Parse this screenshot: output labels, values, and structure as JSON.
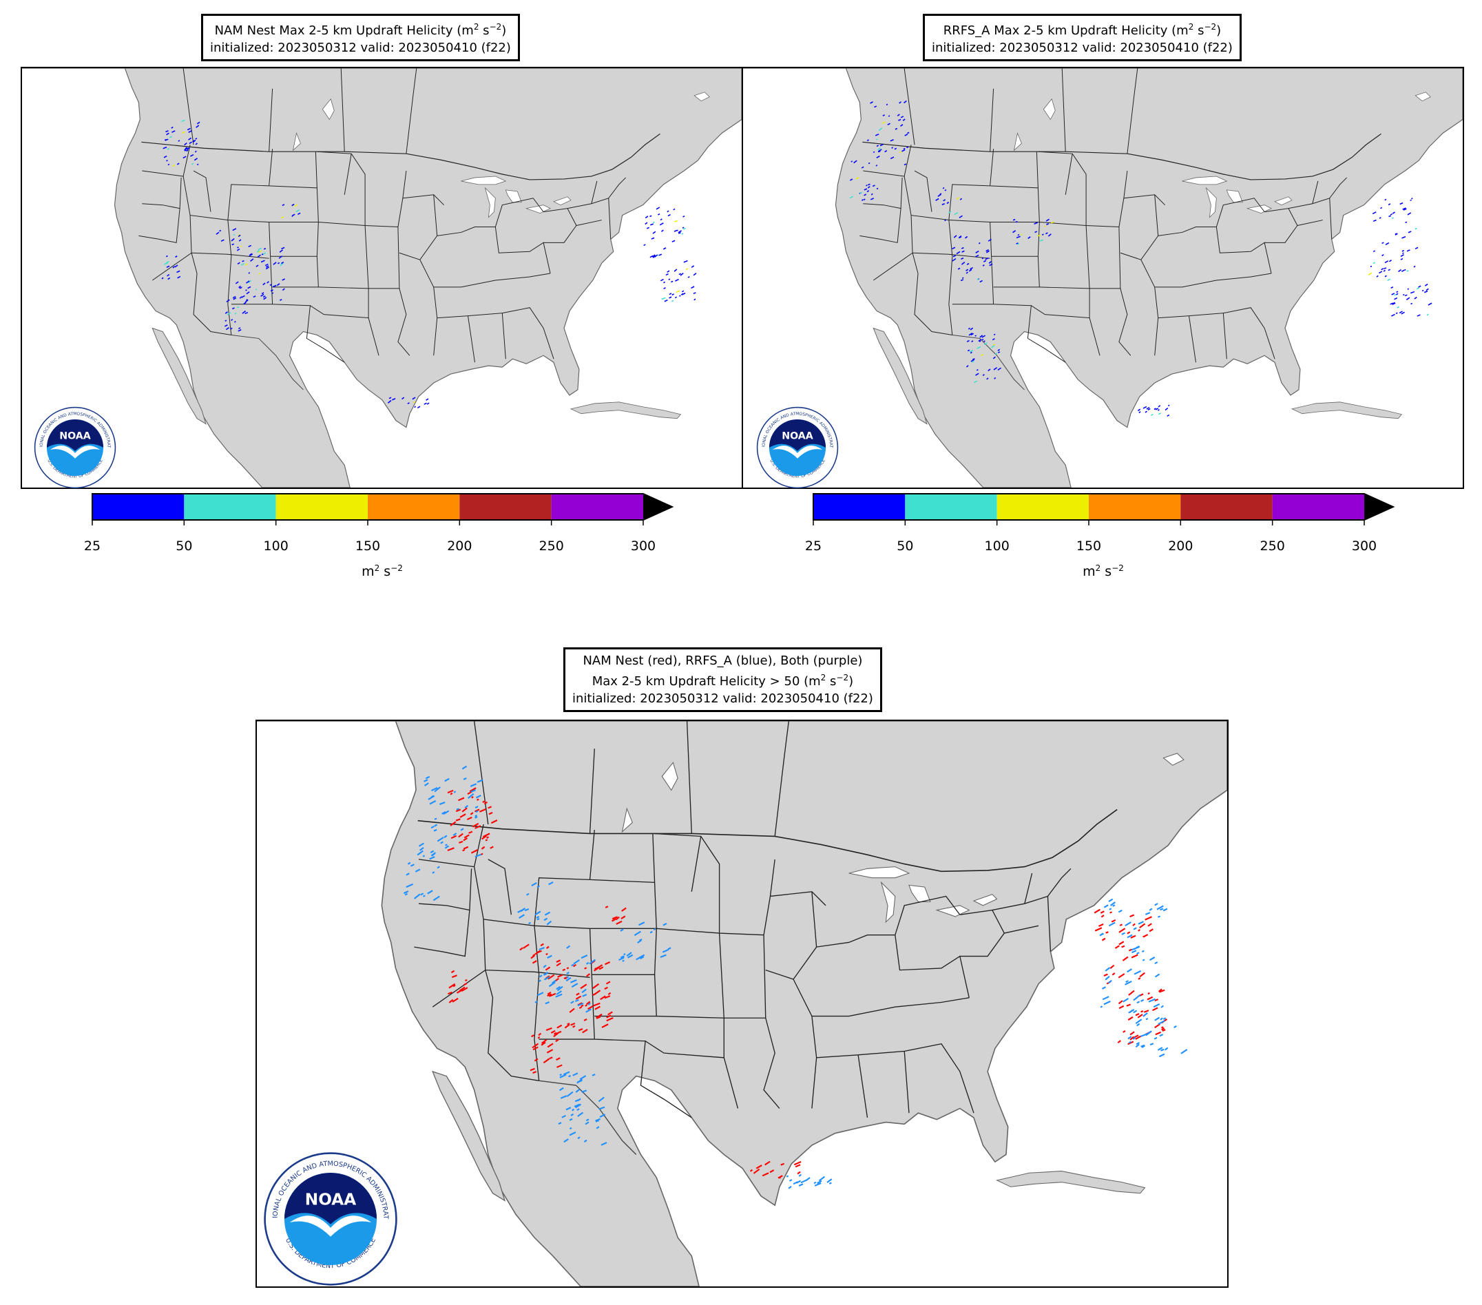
{
  "panels": [
    {
      "id": "nam",
      "title_line1_prefix": "NAM Nest Max 2-5 km Updraft Helicity (m",
      "title_line2": "initialized: 2023050312 valid: 2023050410 (f22)"
    },
    {
      "id": "rrfs",
      "title_line1_prefix": "RRFS_A Max 2-5 km Updraft Helicity (m",
      "title_line2": "initialized: 2023050312 valid: 2023050410 (f22)"
    }
  ],
  "combined": {
    "title_line1": "NAM Nest (red), RRFS_A (blue), Both (purple)",
    "title_line2_prefix": "Max 2-5 km Updraft Helicity > 50 (m",
    "title_line3": "initialized: 2023050312 valid: 2023050410 (f22)"
  },
  "colorbar": {
    "ticks": [
      "25",
      "50",
      "100",
      "150",
      "200",
      "250",
      "300"
    ],
    "colors": [
      "#0000ff",
      "#40e0d0",
      "#eeee00",
      "#ff8c00",
      "#b22222",
      "#9400d3"
    ],
    "extend_color": "#000000",
    "unit_base": "m",
    "unit_mid": " s"
  },
  "units_sup": {
    "two": "2",
    "neg_two": "−2",
    "close": ")"
  },
  "logo": {
    "wordmark": "NOAA",
    "ring_text": "NATIONAL OCEANIC AND ATMOSPHERIC ADMINISTRATION",
    "ring_text_bottom": "U.S. DEPARTMENT OF COMMERCE"
  },
  "colors": {
    "land": "#d3d3d3",
    "ocean": "#ffffff",
    "nam": "#ff0000",
    "rrfs": "#1e90ff",
    "both": "#8000ff"
  }
}
